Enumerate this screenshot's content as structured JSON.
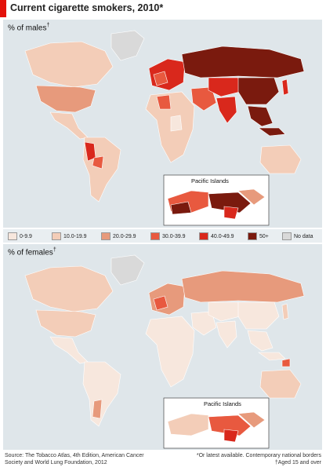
{
  "title": "Current cigarette smokers, 2010*",
  "males": {
    "label": "% of males",
    "mark": "†",
    "inset_title": "Pacific Islands"
  },
  "females": {
    "label": "% of females",
    "mark": "†",
    "inset_title": "Pacific Islands"
  },
  "legend": [
    {
      "label": "0-9.9",
      "color": "#f7e7dd"
    },
    {
      "label": "10.0-19.9",
      "color": "#f3cdb8"
    },
    {
      "label": "20.0-29.9",
      "color": "#e79a7c"
    },
    {
      "label": "30.0-39.9",
      "color": "#e8593f"
    },
    {
      "label": "40.0-49.9",
      "color": "#d9281c"
    },
    {
      "label": "50+",
      "color": "#7a1a0e"
    },
    {
      "label": "No data",
      "color": "#d9d9d9"
    }
  ],
  "source": "Source: The Tobacco Atlas, 4th Edition, American Cancer Society and World Lung Foundation, 2012",
  "footnote_1": "*Or latest available. Contemporary national borders",
  "footnote_2": "†Aged 15 and over",
  "colors": {
    "accent": "#e3120b",
    "ocean": "#dfe6ea"
  }
}
